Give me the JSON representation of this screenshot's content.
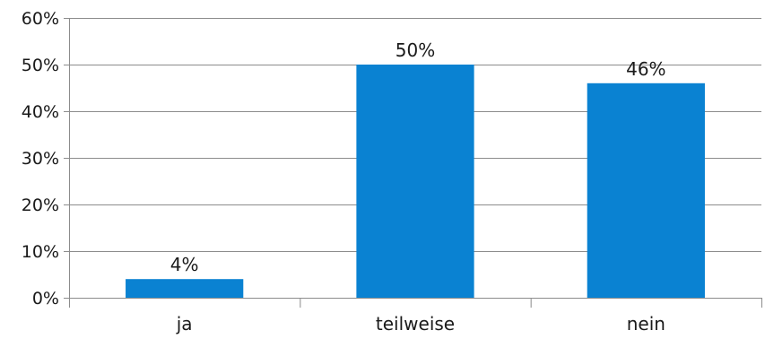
{
  "chart_data": {
    "type": "bar",
    "categories": [
      "ja",
      "teilweise",
      "nein"
    ],
    "values": [
      4,
      50,
      46
    ],
    "data_labels": [
      "4%",
      "50%",
      "46%"
    ],
    "y_tick_labels": [
      "0%",
      "10%",
      "20%",
      "30%",
      "40%",
      "50%",
      "60%"
    ],
    "y_ticks": [
      0,
      10,
      20,
      30,
      40,
      50,
      60
    ],
    "ylim": [
      0,
      60
    ],
    "grid": true,
    "legend": "none",
    "bar_color": "#0a82d2",
    "grid_color": "#8c8c8c"
  }
}
